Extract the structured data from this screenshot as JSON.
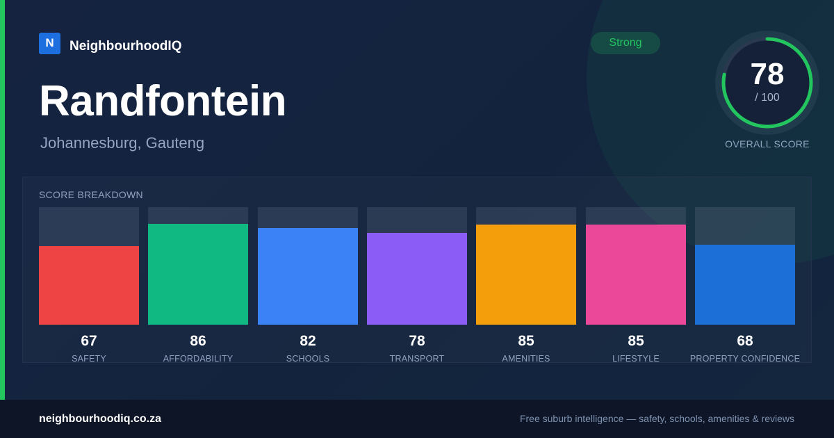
{
  "brand": {
    "logo_letter": "N",
    "name": "NeighbourhoodIQ",
    "logo_color": "#1d6fe0"
  },
  "suburb": {
    "name": "Randfontein",
    "location": "Johannesburg, Gauteng"
  },
  "rating_badge": {
    "label": "Strong",
    "color": "#22c55e"
  },
  "overall": {
    "score": "78",
    "max_label": "/ 100",
    "label": "OVERALL SCORE",
    "fraction": 0.78,
    "ring_color": "#22c55e"
  },
  "breakdown": {
    "title": "SCORE BREAKDOWN",
    "scale_max": 100,
    "items": [
      {
        "label": "SAFETY",
        "value": "67",
        "color": "#ef4444"
      },
      {
        "label": "AFFORDABILITY",
        "value": "86",
        "color": "#10b981"
      },
      {
        "label": "SCHOOLS",
        "value": "82",
        "color": "#3b82f6"
      },
      {
        "label": "TRANSPORT",
        "value": "78",
        "color": "#8b5cf6"
      },
      {
        "label": "AMENITIES",
        "value": "85",
        "color": "#f59e0b"
      },
      {
        "label": "LIFESTYLE",
        "value": "85",
        "color": "#ec4899"
      },
      {
        "label": "PROPERTY CONFIDENCE",
        "value": "68",
        "color": "#1d6fd8"
      }
    ]
  },
  "footer": {
    "url": "neighbourhoodiq.co.za",
    "tagline": "Free suburb intelligence — safety, schools, amenities & reviews"
  }
}
